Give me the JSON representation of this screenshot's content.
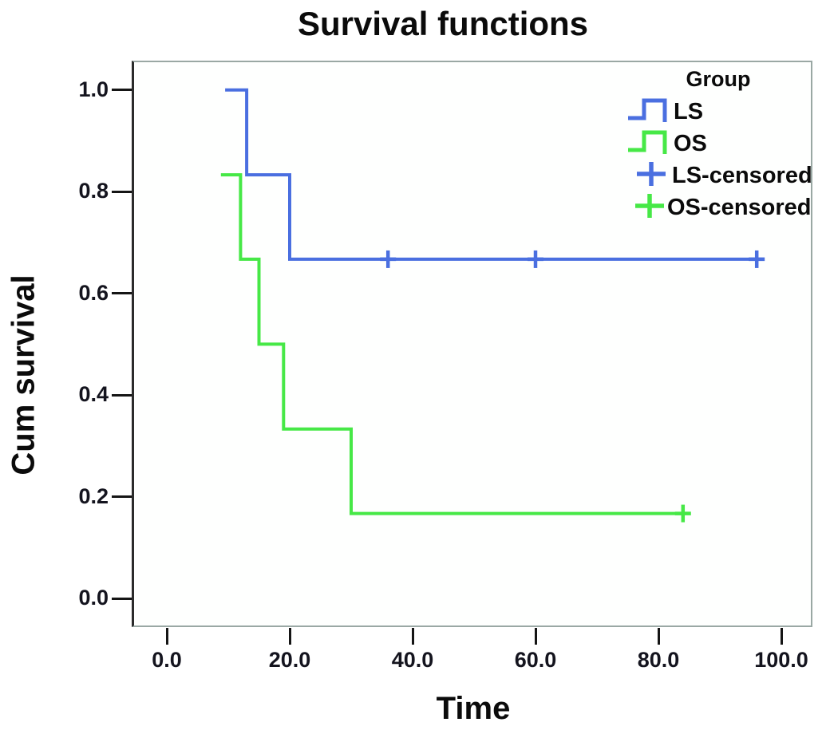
{
  "chart_data": {
    "type": "line",
    "subtype": "kaplan-meier-step-survival",
    "title": "Survival functions",
    "xlabel": "Time",
    "ylabel": "Cum survival",
    "xlim": [
      -5.5,
      105
    ],
    "ylim": [
      -0.12,
      1.06
    ],
    "grid": false,
    "x_ticks": [
      {
        "label": "0.0",
        "value": 0
      },
      {
        "label": "20.0",
        "value": 20
      },
      {
        "label": "40.0",
        "value": 40
      },
      {
        "label": "60.0",
        "value": 60
      },
      {
        "label": "80.0",
        "value": 80
      },
      {
        "label": "100.0",
        "value": 100
      }
    ],
    "y_ticks": [
      {
        "label": "0.0",
        "value": 0.0
      },
      {
        "label": "0.2",
        "value": 0.2
      },
      {
        "label": "0.4",
        "value": 0.4
      },
      {
        "label": "0.6",
        "value": 0.6
      },
      {
        "label": "0.8",
        "value": 0.8
      },
      {
        "label": "1.0",
        "value": 1.0
      }
    ],
    "legend": {
      "position": "upper-right-inside",
      "title": "Group",
      "entries": [
        {
          "label": "LS",
          "marker": "step",
          "color": "#4a6fe0"
        },
        {
          "label": "OS",
          "marker": "step",
          "color": "#46e846"
        },
        {
          "label": "LS-censored",
          "marker": "plus",
          "color": "#4a6fe0"
        },
        {
          "label": "OS-censored",
          "marker": "plus",
          "color": "#46e846"
        }
      ]
    },
    "series": [
      {
        "name": "LS",
        "color": "#4a6fe0",
        "points": [
          [
            9.5,
            1.0
          ],
          [
            13,
            1.0
          ],
          [
            13,
            0.833
          ],
          [
            20,
            0.833
          ],
          [
            20,
            0.667
          ],
          [
            96,
            0.667
          ]
        ],
        "censored": [
          [
            36,
            0.667
          ],
          [
            60,
            0.667
          ],
          [
            96,
            0.667
          ]
        ]
      },
      {
        "name": "OS",
        "color": "#46e846",
        "points": [
          [
            8.8,
            0.833
          ],
          [
            12,
            0.833
          ],
          [
            12,
            0.667
          ],
          [
            15,
            0.667
          ],
          [
            15,
            0.5
          ],
          [
            19,
            0.5
          ],
          [
            19,
            0.333
          ],
          [
            30,
            0.333
          ],
          [
            30,
            0.167
          ],
          [
            84,
            0.167
          ]
        ],
        "censored": [
          [
            84,
            0.167
          ]
        ]
      }
    ]
  }
}
